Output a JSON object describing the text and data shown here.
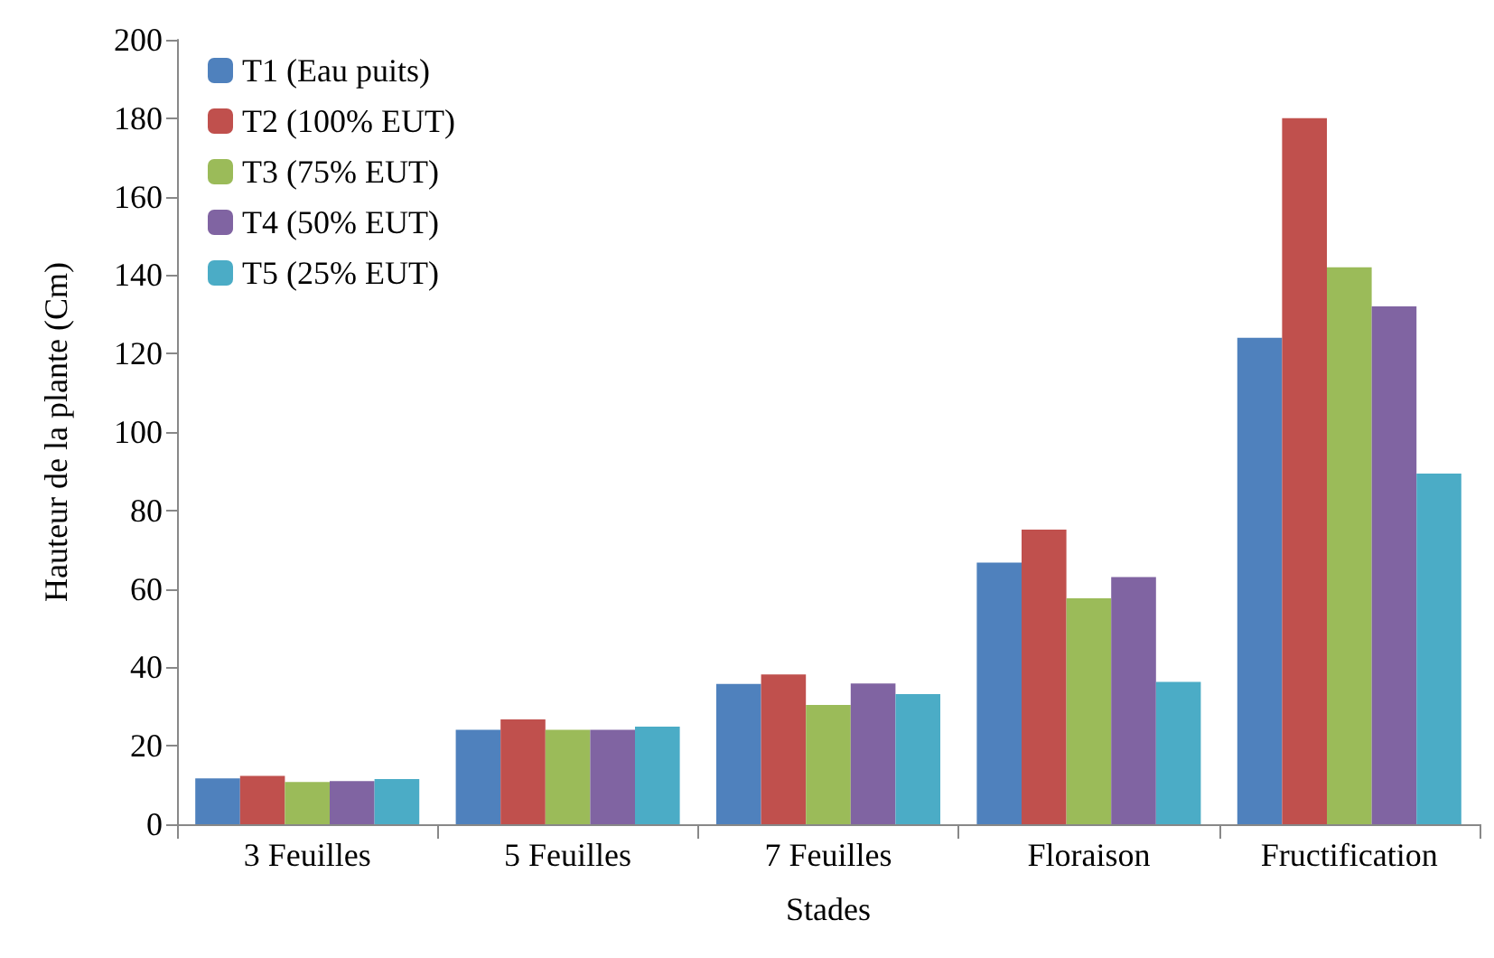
{
  "chart_data": {
    "type": "bar",
    "xlabel": "Stades",
    "ylabel": "Hauteur de la plante (Cm)",
    "categories": [
      "3 Feuilles",
      "5 Feuilles",
      "7 Feuilles",
      "Floraison",
      "Fructification"
    ],
    "series": [
      {
        "name": "T1 (Eau puits)",
        "color": "#4f81bd",
        "values": [
          11.7,
          24.1,
          35.8,
          66.7,
          124
        ]
      },
      {
        "name": "T2 (100% EUT)",
        "color": "#c0504d",
        "values": [
          12.3,
          26.7,
          38.2,
          75.1,
          180
        ]
      },
      {
        "name": "T3 (75% EUT)",
        "color": "#9bbb59",
        "values": [
          10.8,
          24.1,
          30.4,
          57.6,
          142
        ]
      },
      {
        "name": "T4 (50% EUT)",
        "color": "#8064a2",
        "values": [
          11,
          24.1,
          35.9,
          63,
          132
        ]
      },
      {
        "name": "T5 (25% EUT)",
        "color": "#4bacc6",
        "values": [
          11.5,
          24.9,
          33.2,
          36.3,
          89.4
        ]
      }
    ],
    "ylim": [
      0,
      200
    ],
    "yticks": [
      0,
      20,
      40,
      60,
      80,
      100,
      120,
      140,
      160,
      180,
      200
    ],
    "grid": false,
    "legend": "top left"
  }
}
